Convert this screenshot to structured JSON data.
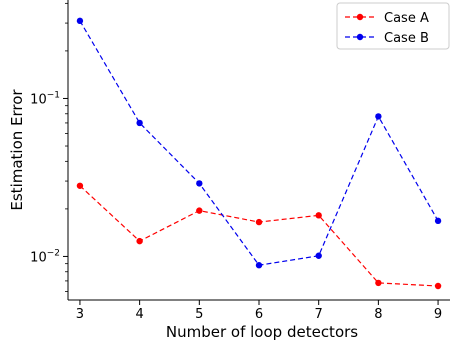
{
  "chart_data": {
    "type": "line",
    "title": "",
    "xlabel": "Number of loop detectors",
    "ylabel": "Estimation Error",
    "x": [
      3,
      4,
      5,
      6,
      7,
      8,
      9
    ],
    "xlim": [
      2.8,
      9.2
    ],
    "yscale": "log",
    "ylim": [
      0.0053,
      0.42
    ],
    "yticks": [
      {
        "value": 0.1,
        "base": "10",
        "exp": "−1"
      },
      {
        "value": 0.01,
        "base": "10",
        "exp": "−2"
      }
    ],
    "grid": false,
    "legend_position": "top-right",
    "series": [
      {
        "name": "Case A",
        "color": "#ff0000",
        "linestyle": "dashed",
        "marker": "circle",
        "values": [
          0.028,
          0.0125,
          0.0195,
          0.0165,
          0.0182,
          0.0068,
          0.0065
        ]
      },
      {
        "name": "Case B",
        "color": "#0000ee",
        "linestyle": "dashed",
        "marker": "circle",
        "values": [
          0.31,
          0.07,
          0.029,
          0.0088,
          0.0101,
          0.077,
          0.0168
        ]
      }
    ]
  }
}
